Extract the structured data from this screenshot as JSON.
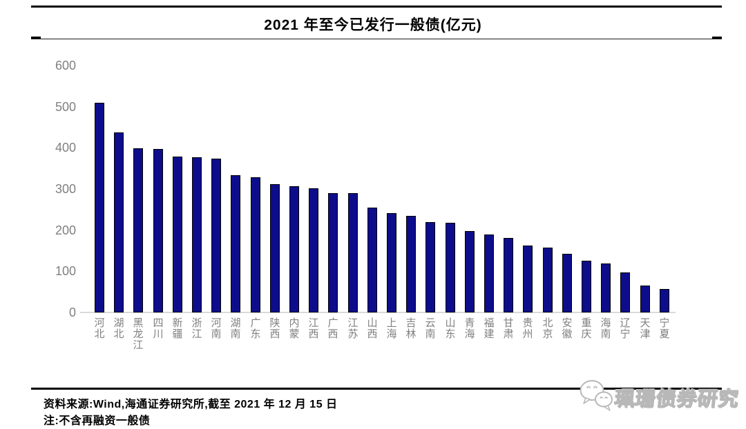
{
  "title": "2021 年至今已发行一般债(亿元)",
  "chart_data": {
    "type": "bar",
    "title": "2021 年至今已发行一般债(亿元)",
    "unit": "亿元",
    "categories": [
      "河北",
      "湖北",
      "黑龙江",
      "四川",
      "新疆",
      "浙江",
      "河南",
      "湖南",
      "广东",
      "陕西",
      "内蒙",
      "江西",
      "广西",
      "江苏",
      "山西",
      "上海",
      "吉林",
      "云南",
      "山东",
      "青海",
      "福建",
      "甘肃",
      "贵州",
      "北京",
      "安徽",
      "重庆",
      "海南",
      "辽宁",
      "天津",
      "宁夏"
    ],
    "values": [
      510,
      437,
      398,
      397,
      378,
      377,
      374,
      333,
      329,
      312,
      307,
      301,
      290,
      289,
      255,
      242,
      235,
      220,
      218,
      197,
      190,
      181,
      162,
      157,
      143,
      126,
      119,
      97,
      65,
      57
    ],
    "ylim": [
      0,
      600
    ],
    "yticks": [
      0,
      100,
      200,
      300,
      400,
      500,
      600
    ],
    "bar_color": "#0D0D8C",
    "axis_label_color": "#808080",
    "grid": false,
    "legend": false
  },
  "footer": {
    "source_line": "资料来源:Wind,海通证券研究所,截至 2021 年 12 月 15 日",
    "note_line": "注:不含再融资一般债"
  },
  "watermark": {
    "icon": "wechat-icon",
    "text": "珮珊债券研究"
  }
}
